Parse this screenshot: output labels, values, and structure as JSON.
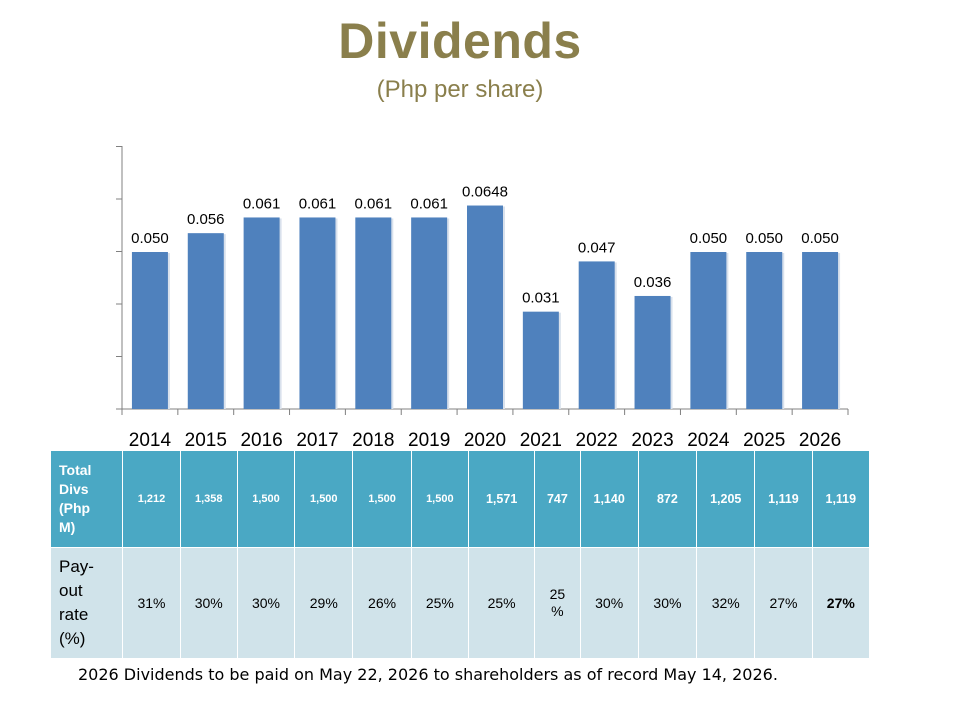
{
  "title": "Dividends",
  "subtitle": "(Php per share)",
  "chart_data": {
    "type": "bar",
    "categories": [
      "2014",
      "2015",
      "2016",
      "2017",
      "2018",
      "2019",
      "2020",
      "2021",
      "2022",
      "2023",
      "2024",
      "2025",
      "2026"
    ],
    "values": [
      0.05,
      0.056,
      0.061,
      0.061,
      0.061,
      0.061,
      0.0648,
      0.031,
      0.047,
      0.036,
      0.05,
      0.05,
      0.05
    ],
    "data_labels": [
      "0.050",
      "0.056",
      "0.061",
      "0.061",
      "0.061",
      "0.061",
      "0.0648",
      "0.031",
      "0.047",
      "0.036",
      "0.050",
      "0.050",
      "0.050"
    ],
    "title": "Dividends",
    "subtitle": "(Php per share)",
    "xlabel": "",
    "ylabel": "",
    "ylim": [
      0,
      0.05
    ],
    "bar_color": "#4f81bd"
  },
  "table": {
    "total_divs_label": [
      "Total",
      "Divs",
      "(Php",
      "M)"
    ],
    "pay_out_label": [
      "Pay-",
      "out",
      "rate",
      "(%)"
    ],
    "total_divs": [
      "1,212",
      "1,358",
      "1,500",
      "1,500",
      "1,500",
      "1,500",
      "1,571",
      "747",
      "1,140",
      "872",
      "1,205",
      "1,119",
      "1,119"
    ],
    "pay_out": [
      "31%",
      "30%",
      "30%",
      "29%",
      "26%",
      "25%",
      "25%",
      "25 %",
      "30%",
      "30%",
      "32%",
      "27%",
      "27%"
    ]
  },
  "footnote": "2026 Dividends to be paid on May 22, 2026 to shareholders as of record May 14, 2026.",
  "colors": {
    "title": "#8a7f4c",
    "table_header": "#4aa8c4",
    "table_row": "#d0e3ea"
  }
}
